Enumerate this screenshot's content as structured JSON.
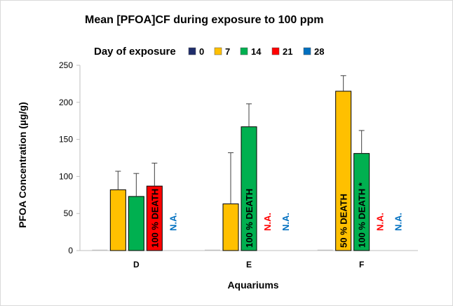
{
  "chart_data": {
    "type": "bar",
    "title": "Mean [PFOA]CF during exposure to 100 ppm",
    "legend_title": "Day of exposure",
    "legend_position": "top",
    "xlabel": "Aquariums",
    "ylabel": "PFOA  Concentration (µg/g)",
    "ylim": [
      0,
      250
    ],
    "yticks": [
      0,
      50,
      100,
      150,
      200,
      250
    ],
    "ytick_labels": [
      "0",
      "50",
      "100",
      "150",
      "200",
      "250"
    ],
    "grid": false,
    "categories": [
      "D",
      "E",
      "F"
    ],
    "series": [
      {
        "name": "0",
        "color": "#1f2d6b",
        "values": [
          0,
          0,
          0
        ],
        "errors": [
          null,
          null,
          null
        ]
      },
      {
        "name": "7",
        "color": "#ffc000",
        "values": [
          82,
          63,
          215
        ],
        "errors": [
          25,
          69,
          21
        ]
      },
      {
        "name": "14",
        "color": "#00b050",
        "values": [
          73,
          167,
          131
        ],
        "errors": [
          31,
          31,
          31
        ]
      },
      {
        "name": "21",
        "color": "#ff0000",
        "values": [
          87,
          null,
          null
        ],
        "errors": [
          31,
          null,
          null
        ]
      },
      {
        "name": "28",
        "color": "#0070c0",
        "values": [
          null,
          null,
          null
        ],
        "errors": [
          null,
          null,
          null
        ]
      }
    ],
    "annotations": [
      {
        "category": "D",
        "series": "21",
        "text": "100 % DEATH",
        "color": "#000000",
        "on_bar": true
      },
      {
        "category": "D",
        "series": "28",
        "text": "N.A.",
        "color": "#0070c0",
        "on_bar": false
      },
      {
        "category": "E",
        "series": "14",
        "text": "100 % DEATH",
        "color": "#000000",
        "on_bar": true
      },
      {
        "category": "E",
        "series": "21",
        "text": "N.A.",
        "color": "#ff0000",
        "on_bar": false
      },
      {
        "category": "E",
        "series": "28",
        "text": "N.A.",
        "color": "#0070c0",
        "on_bar": false
      },
      {
        "category": "F",
        "series": "7",
        "text": "50 % DEATH",
        "color": "#000000",
        "on_bar": true
      },
      {
        "category": "F",
        "series": "14",
        "text": "100 % DEATH *",
        "color": "#000000",
        "on_bar": true
      },
      {
        "category": "F",
        "series": "21",
        "text": "N.A.",
        "color": "#ff0000",
        "on_bar": false
      },
      {
        "category": "F",
        "series": "28",
        "text": "N.A.",
        "color": "#0070c0",
        "on_bar": false
      }
    ]
  }
}
